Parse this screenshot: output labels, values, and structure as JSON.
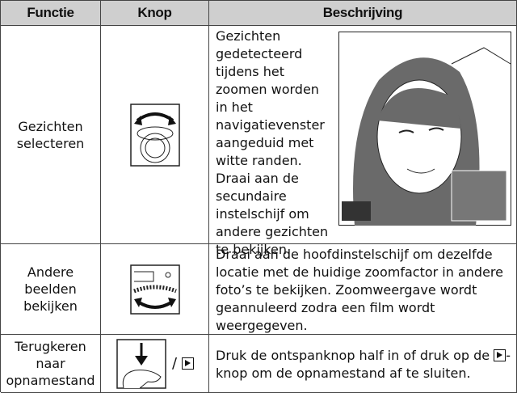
{
  "table": {
    "headers": [
      "Functie",
      "Knop",
      "Beschrijving"
    ],
    "rows": [
      {
        "function": "Gezichten selecteren",
        "description": [
          "Gezichten gedetecteerd tijdens het zoomen worden in het navigatievenster aangeduid met witte randen.",
          "Draai aan de secundaire instelschijf om andere gezichten te bekijken."
        ]
      },
      {
        "function": "Andere beelden bekijken",
        "description": [
          "Draai aan de hoofdinstelschijf om dezelfde locatie met de huidige zoomfactor in andere foto’s te bekijken. Zoomweergave wordt geannuleerd zodra een film wordt weergegeven."
        ]
      },
      {
        "function": "Terugkeren naar opnamestand",
        "button_separator": "/",
        "description": [
          "Druk de ontspanknop half in of druk op de",
          "-knop om de opnamestand af te sluiten."
        ]
      }
    ]
  }
}
